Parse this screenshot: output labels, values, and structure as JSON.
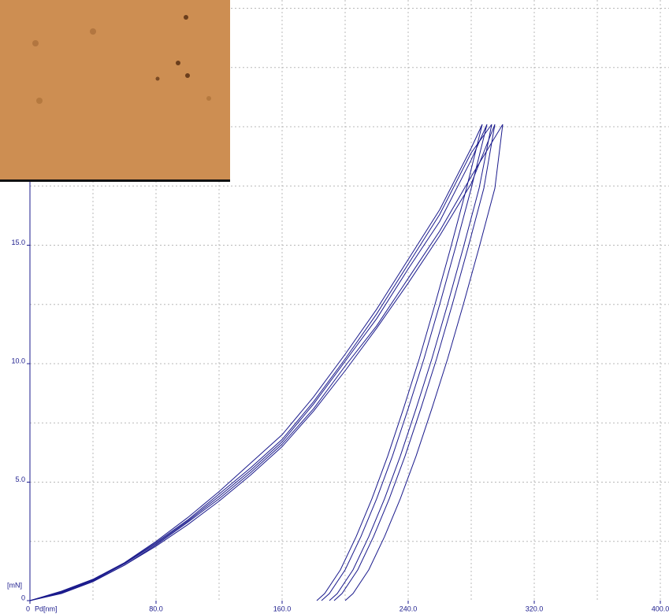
{
  "chart_data": {
    "type": "line",
    "x_label": "Pd[nm]",
    "y_label": "[mN]",
    "xlim": [
      0,
      405.5
    ],
    "ylim": [
      0,
      25.35
    ],
    "xticks": [
      0,
      {
        "value": 80,
        "label": "80.0"
      },
      {
        "value": 160,
        "label": "160.0"
      },
      {
        "value": 240,
        "label": "240.0"
      },
      {
        "value": 320,
        "label": "320.0"
      },
      {
        "value": 400,
        "label": "400.0"
      }
    ],
    "yticks": [
      0,
      {
        "value": 5,
        "label": "5.0"
      },
      {
        "value": 10,
        "label": "10.0"
      },
      {
        "value": 15,
        "label": "15.0"
      }
    ],
    "xgrid": [
      40,
      80,
      120,
      160,
      200,
      240,
      280,
      320,
      360,
      400
    ],
    "ygrid": [
      2.5,
      5,
      7.5,
      10,
      12.5,
      15,
      17.5,
      20,
      22.5,
      25
    ],
    "series": [
      {
        "color": "#1a1a8c",
        "x": [
          0,
          20,
          40,
          60,
          80,
          100,
          120,
          140,
          160,
          180,
          200,
          220,
          240,
          260,
          280,
          290,
          280,
          270,
          260,
          250,
          240,
          230,
          220,
          210,
          200,
          190,
          185
        ],
        "values": [
          0,
          0.35,
          0.85,
          1.55,
          2.4,
          3.35,
          4.4,
          5.5,
          6.7,
          8.3,
          10.1,
          11.9,
          14,
          16,
          18.6,
          20.1,
          17.4,
          14.9,
          12.5,
          10.2,
          8.1,
          6.1,
          4.3,
          2.7,
          1.3,
          0.3,
          0
        ]
      },
      {
        "color": "#1a1a8c",
        "x": [
          0,
          20,
          40,
          60,
          80,
          100,
          120,
          140,
          160,
          180,
          200,
          220,
          240,
          260,
          280,
          295,
          288,
          278,
          268,
          258,
          248,
          238,
          228,
          218,
          208,
          198,
          193
        ],
        "values": [
          0,
          0.3,
          0.8,
          1.5,
          2.3,
          3.2,
          4.2,
          5.3,
          6.5,
          8.0,
          9.7,
          11.5,
          13.4,
          15.4,
          17.6,
          20.1,
          17.4,
          14.9,
          12.5,
          10.2,
          8.1,
          6.1,
          4.3,
          2.7,
          1.3,
          0.3,
          0
        ]
      },
      {
        "color": "#1a1a8c",
        "x": [
          0,
          20,
          40,
          60,
          80,
          100,
          120,
          140,
          160,
          180,
          200,
          220,
          240,
          260,
          280,
          287,
          277,
          267,
          257,
          247,
          237,
          227,
          217,
          207,
          197,
          187,
          182
        ],
        "values": [
          0,
          0.4,
          0.9,
          1.6,
          2.5,
          3.5,
          4.6,
          5.8,
          7.0,
          8.6,
          10.4,
          12.3,
          14.4,
          16.5,
          19.1,
          20.1,
          17.4,
          14.9,
          12.5,
          10.2,
          8.1,
          6.1,
          4.3,
          2.7,
          1.3,
          0.3,
          0
        ]
      },
      {
        "color": "#1a1a8c",
        "x": [
          0,
          20,
          40,
          60,
          80,
          100,
          120,
          140,
          160,
          180,
          200,
          220,
          240,
          260,
          280,
          300,
          295,
          285,
          275,
          265,
          255,
          245,
          235,
          225,
          215,
          205,
          200
        ],
        "values": [
          0,
          0.32,
          0.82,
          1.5,
          2.35,
          3.3,
          4.3,
          5.4,
          6.6,
          8.1,
          9.9,
          11.6,
          13.6,
          15.6,
          17.9,
          20.1,
          17.4,
          14.9,
          12.5,
          10.2,
          8.1,
          6.1,
          4.3,
          2.7,
          1.3,
          0.3,
          0
        ]
      },
      {
        "color": "#1a1a8c",
        "x": [
          0,
          20,
          40,
          60,
          80,
          100,
          120,
          140,
          160,
          180,
          200,
          220,
          240,
          260,
          280,
          293,
          285,
          275,
          265,
          255,
          245,
          235,
          225,
          215,
          205,
          195,
          190
        ],
        "values": [
          0,
          0.37,
          0.88,
          1.58,
          2.45,
          3.4,
          4.5,
          5.6,
          6.8,
          8.4,
          10.2,
          12.1,
          14.2,
          16.3,
          18.9,
          20.1,
          17.4,
          14.9,
          12.5,
          10.2,
          8.1,
          6.1,
          4.3,
          2.7,
          1.3,
          0.3,
          0
        ]
      }
    ]
  }
}
